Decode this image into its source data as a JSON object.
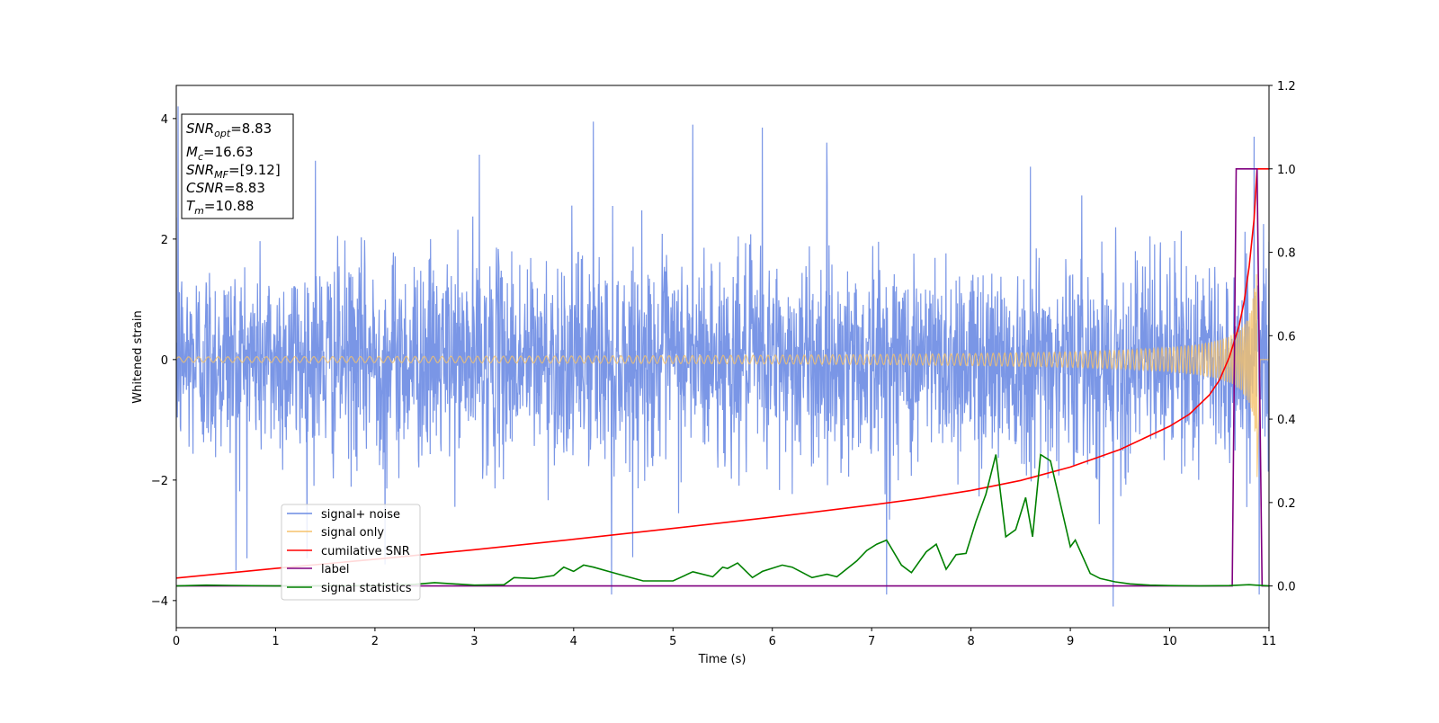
{
  "chart_data": {
    "type": "line",
    "xlabel": "Time (s)",
    "ylabel": "Whitened strain",
    "xlim": [
      0,
      11
    ],
    "ylim": [
      -4.45,
      4.55
    ],
    "y2lim": [
      -0.1,
      1.2
    ],
    "x_ticks": [
      0,
      1,
      2,
      3,
      4,
      5,
      6,
      7,
      8,
      9,
      10,
      11
    ],
    "y_ticks": [
      4,
      2,
      0,
      -2,
      -4
    ],
    "y2_ticks": [
      "1.2",
      "1.0",
      "0.8",
      "0.6",
      "0.4",
      "0.2",
      "0.0"
    ],
    "legend_position": "lower-left",
    "colors": {
      "signal_noise": "#6b8be3",
      "signal_only": "#f5c26b",
      "cumulative_snr": "#ff0000",
      "label": "#800080",
      "signal_statistics": "#008000"
    },
    "info_box": {
      "snr_opt": {
        "name": "SNR",
        "sub": "opt",
        "value": "=8.83"
      },
      "mc": {
        "name": "M",
        "sub": "c",
        "value": "=16.63"
      },
      "snr_mf": {
        "name": "SNR",
        "sub": "MF",
        "value": "=[9.12]"
      },
      "csnr": {
        "name": "CSNR",
        "value": "=8.83"
      },
      "tm": {
        "name": "T",
        "sub": "m",
        "value": "=10.88"
      }
    },
    "series": [
      {
        "name": "signal+ noise",
        "axis": "left",
        "style": "noise",
        "duration_s": 11,
        "sigma": 0.85,
        "peaks": [
          [
            0.02,
            4.2
          ],
          [
            0.6,
            -3.5
          ],
          [
            1.4,
            3.3
          ],
          [
            2.1,
            -3.4
          ],
          [
            3.05,
            3.4
          ],
          [
            4.2,
            3.95
          ],
          [
            4.38,
            -3.9
          ],
          [
            5.2,
            3.9
          ],
          [
            5.9,
            3.85
          ],
          [
            6.55,
            3.6
          ],
          [
            7.15,
            -3.9
          ],
          [
            8.6,
            3.2
          ],
          [
            9.43,
            -4.1
          ],
          [
            10.85,
            3.7
          ],
          [
            10.9,
            -3.9
          ]
        ]
      },
      {
        "name": "signal only",
        "axis": "left",
        "style": "chirp",
        "t_merger": 10.88,
        "peak_amplitude": 2.4
      },
      {
        "name": "cumilative SNR",
        "axis": "right",
        "x": [
          0,
          1,
          2,
          3,
          4,
          5,
          6,
          7,
          7.5,
          8,
          8.5,
          9,
          9.5,
          10,
          10.2,
          10.4,
          10.5,
          10.6,
          10.7,
          10.75,
          10.8,
          10.85,
          10.88,
          11
        ],
        "values": [
          0.019,
          0.042,
          0.064,
          0.087,
          0.112,
          0.138,
          0.165,
          0.194,
          0.21,
          0.229,
          0.253,
          0.285,
          0.327,
          0.383,
          0.412,
          0.458,
          0.493,
          0.548,
          0.625,
          0.683,
          0.765,
          0.88,
          1.0,
          1.0
        ]
      },
      {
        "name": "label",
        "axis": "right",
        "x": [
          0,
          10.63,
          10.67,
          10.88,
          10.93,
          11
        ],
        "values": [
          0,
          0,
          1,
          1,
          0,
          0
        ]
      },
      {
        "name": "signal statistics",
        "axis": "right",
        "x": [
          0,
          0.3,
          1.0,
          2.0,
          2.4,
          2.6,
          3.0,
          3.3,
          3.4,
          3.6,
          3.8,
          3.9,
          4.0,
          4.1,
          4.2,
          4.35,
          4.5,
          4.7,
          5.0,
          5.2,
          5.4,
          5.5,
          5.55,
          5.65,
          5.8,
          5.9,
          6.1,
          6.2,
          6.4,
          6.55,
          6.65,
          6.85,
          6.95,
          7.05,
          7.15,
          7.3,
          7.4,
          7.55,
          7.65,
          7.75,
          7.85,
          7.95,
          8.05,
          8.15,
          8.25,
          8.35,
          8.45,
          8.55,
          8.62,
          8.7,
          8.8,
          9.0,
          9.05,
          9.2,
          9.3,
          9.45,
          9.6,
          9.8,
          10.0,
          10.3,
          10.6,
          10.8,
          11.0
        ],
        "values": [
          0.0,
          0.002,
          0.0,
          0.001,
          0.004,
          0.008,
          0.002,
          0.003,
          0.02,
          0.018,
          0.025,
          0.045,
          0.035,
          0.05,
          0.045,
          0.035,
          0.025,
          0.012,
          0.012,
          0.034,
          0.022,
          0.045,
          0.042,
          0.055,
          0.02,
          0.035,
          0.05,
          0.045,
          0.02,
          0.028,
          0.022,
          0.06,
          0.085,
          0.1,
          0.11,
          0.05,
          0.032,
          0.082,
          0.1,
          0.04,
          0.075,
          0.078,
          0.155,
          0.22,
          0.315,
          0.118,
          0.135,
          0.212,
          0.118,
          0.315,
          0.3,
          0.094,
          0.11,
          0.03,
          0.018,
          0.01,
          0.005,
          0.002,
          0.001,
          0.0,
          0.001,
          0.003,
          0.0
        ]
      }
    ]
  }
}
